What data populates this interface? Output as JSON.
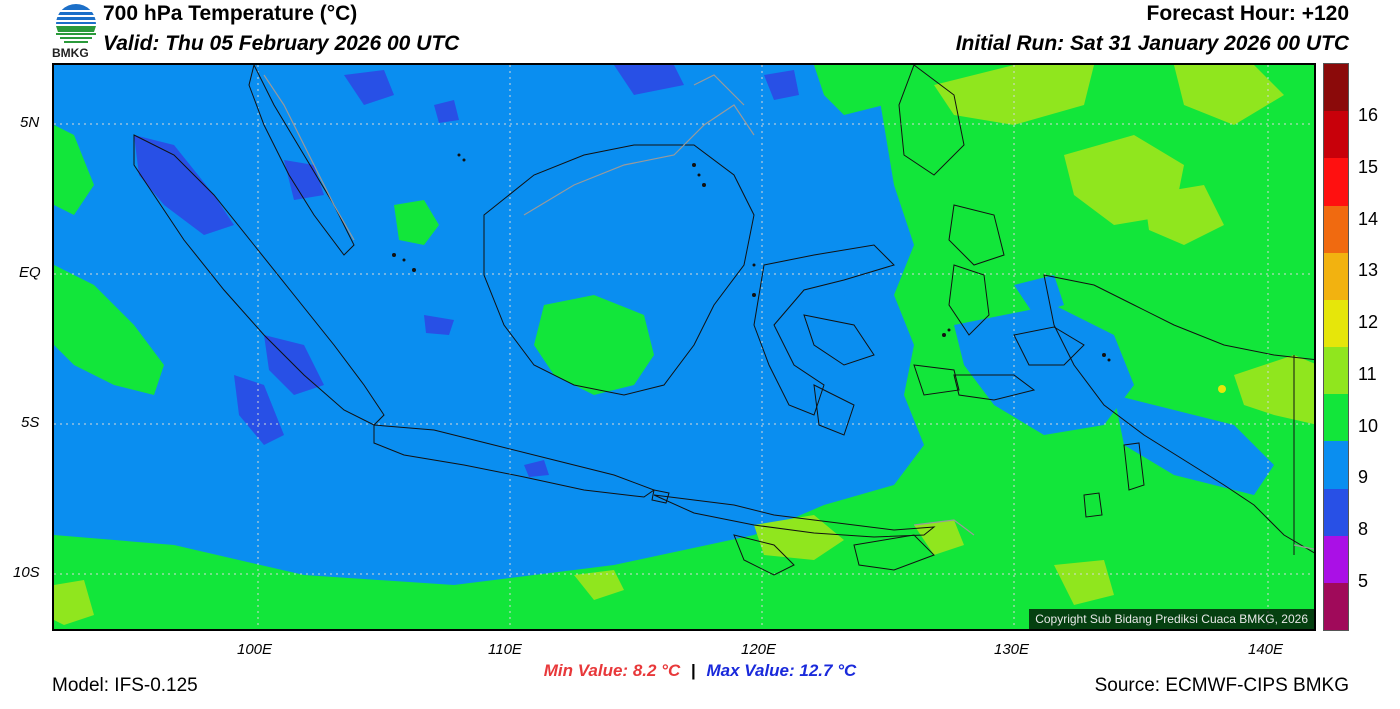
{
  "header": {
    "title": "700 hPa Temperature (°C)",
    "valid": "Valid: Thu 05 February 2026 00 UTC",
    "forecast_hour": "Forecast Hour: +120",
    "initial_run": "Initial Run: Sat 31 January 2026 00 UTC",
    "logo_text": "BMKG"
  },
  "axes": {
    "lat_labels": [
      "5N",
      "EQ",
      "5S",
      "10S"
    ],
    "lon_labels": [
      "100E",
      "110E",
      "120E",
      "130E",
      "140E"
    ]
  },
  "colorbar": {
    "labels": [
      "16",
      "15",
      "14",
      "13",
      "12",
      "11",
      "10",
      "9",
      "8",
      "5"
    ],
    "colors": [
      "#8b0a0a",
      "#c8000a",
      "#ff1010",
      "#f06a10",
      "#f2b210",
      "#e6e60a",
      "#90e61e",
      "#12e63a",
      "#0a8ef0",
      "#2850e6",
      "#aa10e6",
      "#a00a5a"
    ]
  },
  "footer": {
    "model": "Model: IFS-0.125",
    "min_value": "Min Value: 8.2 °C",
    "separator": "|",
    "max_value": "Max Value: 12.7 °C",
    "source": "Source: ECMWF-CIPS BMKG"
  },
  "copyright": "Copyright Sub Bidang Prediksi Cuaca BMKG, 2026",
  "field_colors": {
    "t9": "#0a8ef0",
    "t8": "#2850e6",
    "t10": "#12e63a",
    "t11": "#90e61e",
    "t12": "#e6e60a"
  }
}
